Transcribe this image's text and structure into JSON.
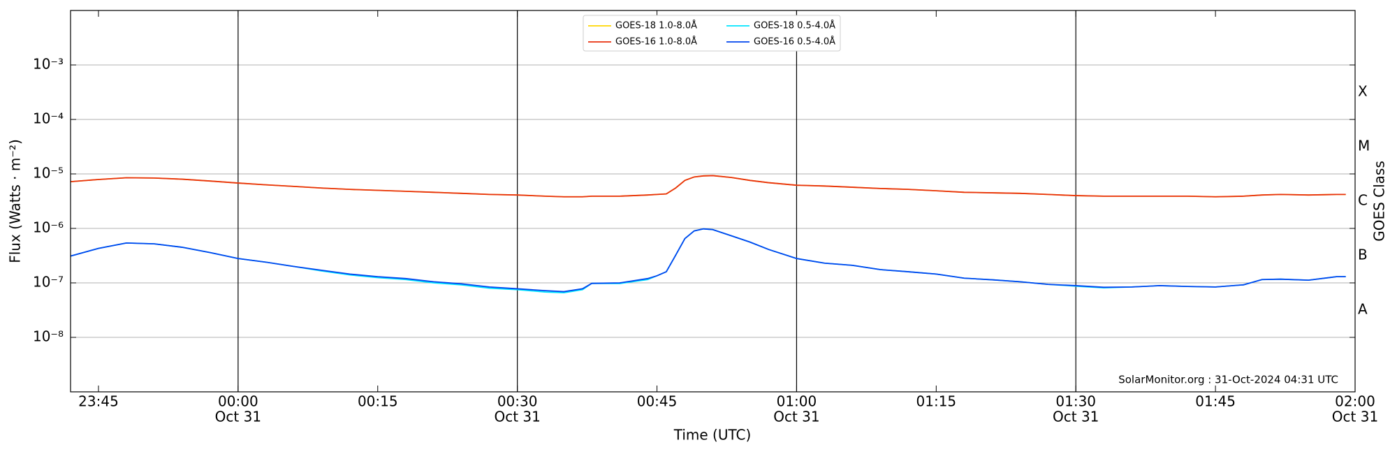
{
  "chart_data": {
    "type": "line",
    "xlabel": "Time (UTC)",
    "ylabel": "Flux (Watts · m⁻²)",
    "y2label": "GOES Class",
    "annotation": "SolarMonitor.org : 31-Oct-2024 04:31 UTC",
    "log_scale": true,
    "grid": true,
    "legend": "top",
    "xlim": [
      "23:42",
      "02:00"
    ],
    "xticks": [
      "23:45",
      {
        "value": "00:00",
        "label": "00:00",
        "date": "Oct 31"
      },
      "00:15",
      {
        "value": "00:30",
        "label": "00:30",
        "date": "Oct 31"
      },
      "00:45",
      {
        "value": "01:00",
        "label": "01:00",
        "date": "Oct 31"
      },
      "01:15",
      {
        "value": "01:30",
        "label": "01:30",
        "date": "Oct 31"
      },
      "01:45",
      {
        "value": "02:00",
        "label": "02:00",
        "date": "Oct 31"
      }
    ],
    "vlines": [
      "00:00",
      "00:30",
      "01:00",
      "01:30"
    ],
    "ylim": [
      1e-09,
      0.01
    ],
    "yticks": [
      {
        "value": 1e-08,
        "label": "10⁻⁸"
      },
      {
        "value": 1e-07,
        "label": "10⁻⁷"
      },
      {
        "value": 1e-06,
        "label": "10⁻⁶"
      },
      {
        "value": 1e-05,
        "label": "10⁻⁵"
      },
      {
        "value": 0.0001,
        "label": "10⁻⁴"
      },
      {
        "value": 0.001,
        "label": "10⁻³"
      }
    ],
    "y2lim": [
      1e-09,
      0.01
    ],
    "y2ticks": [
      {
        "value": 3.162e-08,
        "label": "A"
      },
      {
        "value": 3.162e-07,
        "label": "B"
      },
      {
        "value": 3.162e-06,
        "label": "C"
      },
      {
        "value": 3.162e-05,
        "label": "M"
      },
      {
        "value": 0.0003162,
        "label": "X"
      }
    ],
    "x": [
      "23:42",
      "23:45",
      "23:48",
      "23:51",
      "23:54",
      "23:57",
      "00:00",
      "00:03",
      "00:06",
      "00:09",
      "00:12",
      "00:15",
      "00:18",
      "00:21",
      "00:24",
      "00:27",
      "00:30",
      "00:33",
      "00:35",
      "00:37",
      "00:38",
      "00:41",
      "00:44",
      "00:45",
      "00:46",
      "00:47",
      "00:48",
      "00:49",
      "00:50",
      "00:51",
      "00:53",
      "00:55",
      "00:57",
      "01:00",
      "01:03",
      "01:06",
      "01:09",
      "01:12",
      "01:15",
      "01:18",
      "01:21",
      "01:24",
      "01:27",
      "01:30",
      "01:33",
      "01:36",
      "01:39",
      "01:42",
      "01:45",
      "01:48",
      "01:50",
      "01:52",
      "01:55",
      "01:58",
      "01:59"
    ],
    "series": [
      {
        "name": "GOES-18 1.0-8.0Å",
        "color": "#ffd700",
        "values": [
          7.2e-06,
          7.9e-06,
          8.5e-06,
          8.4e-06,
          8e-06,
          7.4e-06,
          6.8e-06,
          6.3e-06,
          5.9e-06,
          5.5e-06,
          5.2e-06,
          5e-06,
          4.8e-06,
          4.6e-06,
          4.4e-06,
          4.2e-06,
          4.1e-06,
          3.9e-06,
          3.8e-06,
          3.8e-06,
          3.9e-06,
          3.9e-06,
          4.1e-06,
          4.2e-06,
          4.3e-06,
          5.5e-06,
          7.6e-06,
          8.8e-06,
          9.2e-06,
          9.3e-06,
          8.6e-06,
          7.6e-06,
          6.9e-06,
          6.2e-06,
          6e-06,
          5.7e-06,
          5.4e-06,
          5.2e-06,
          4.9e-06,
          4.6e-06,
          4.5e-06,
          4.4e-06,
          4.2e-06,
          4e-06,
          3.9e-06,
          3.9e-06,
          3.9e-06,
          3.9e-06,
          3.8e-06,
          3.9e-06,
          4.1e-06,
          4.2e-06,
          4.1e-06,
          4.2e-06,
          4.2e-06
        ]
      },
      {
        "name": "GOES-16 1.0-8.0Å",
        "color": "#e8300e",
        "values": [
          7.2e-06,
          7.9e-06,
          8.5e-06,
          8.4e-06,
          8e-06,
          7.4e-06,
          6.8e-06,
          6.3e-06,
          5.9e-06,
          5.5e-06,
          5.2e-06,
          5e-06,
          4.8e-06,
          4.6e-06,
          4.4e-06,
          4.2e-06,
          4.1e-06,
          3.9e-06,
          3.8e-06,
          3.8e-06,
          3.9e-06,
          3.9e-06,
          4.1e-06,
          4.2e-06,
          4.3e-06,
          5.5e-06,
          7.6e-06,
          8.8e-06,
          9.2e-06,
          9.3e-06,
          8.6e-06,
          7.6e-06,
          6.9e-06,
          6.2e-06,
          6e-06,
          5.7e-06,
          5.4e-06,
          5.2e-06,
          4.9e-06,
          4.6e-06,
          4.5e-06,
          4.4e-06,
          4.2e-06,
          4e-06,
          3.9e-06,
          3.9e-06,
          3.9e-06,
          3.9e-06,
          3.8e-06,
          3.9e-06,
          4.1e-06,
          4.2e-06,
          4.1e-06,
          4.2e-06,
          4.2e-06
        ]
      },
      {
        "name": "GOES-18 0.5-4.0Å",
        "color": "#00e5ff",
        "values": [
          3.1e-07,
          4.3e-07,
          5.4e-07,
          5.2e-07,
          4.5e-07,
          3.6e-07,
          2.8e-07,
          2.4e-07,
          2e-07,
          1.65e-07,
          1.4e-07,
          1.25e-07,
          1.15e-07,
          1e-07,
          9.2e-08,
          8e-08,
          7.5e-08,
          6.8e-08,
          6.6e-08,
          7.5e-08,
          9.8e-08,
          9.7e-08,
          1.15e-07,
          1.35e-07,
          1.6e-07,
          3.2e-07,
          6.5e-07,
          9e-07,
          9.8e-07,
          9.5e-07,
          7.3e-07,
          5.6e-07,
          4.1e-07,
          2.8e-07,
          2.3e-07,
          2.1e-07,
          1.75e-07,
          1.6e-07,
          1.45e-07,
          1.22e-07,
          1.14e-07,
          1.05e-07,
          9.4e-08,
          8.7e-08,
          8.1e-08,
          8.4e-08,
          8.9e-08,
          8.6e-08,
          8.4e-08,
          9.2e-08,
          1.15e-07,
          1.17e-07,
          1.12e-07,
          1.3e-07,
          1.3e-07
        ]
      },
      {
        "name": "GOES-16 0.5-4.0Å",
        "color": "#0044ee",
        "values": [
          3.1e-07,
          4.3e-07,
          5.4e-07,
          5.2e-07,
          4.5e-07,
          3.6e-07,
          2.8e-07,
          2.4e-07,
          2e-07,
          1.7e-07,
          1.45e-07,
          1.3e-07,
          1.2e-07,
          1.05e-07,
          9.6e-08,
          8.4e-08,
          7.8e-08,
          7.2e-08,
          6.9e-08,
          7.8e-08,
          9.8e-08,
          1e-07,
          1.2e-07,
          1.35e-07,
          1.6e-07,
          3.2e-07,
          6.5e-07,
          9e-07,
          9.8e-07,
          9.5e-07,
          7.3e-07,
          5.6e-07,
          4.1e-07,
          2.8e-07,
          2.3e-07,
          2.1e-07,
          1.75e-07,
          1.6e-07,
          1.45e-07,
          1.22e-07,
          1.14e-07,
          1.05e-07,
          9.4e-08,
          8.9e-08,
          8.3e-08,
          8.4e-08,
          8.9e-08,
          8.6e-08,
          8.4e-08,
          9.2e-08,
          1.15e-07,
          1.17e-07,
          1.12e-07,
          1.3e-07,
          1.3e-07
        ]
      }
    ]
  }
}
